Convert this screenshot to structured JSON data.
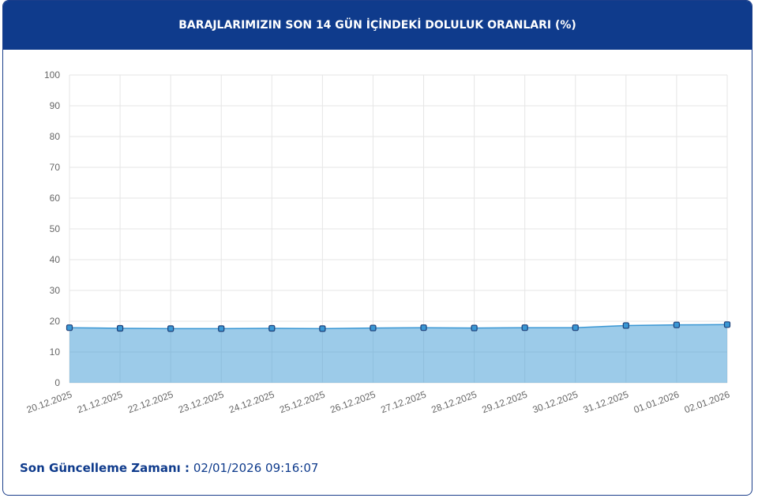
{
  "chart_data": {
    "type": "area",
    "title": "BARAJLARIMIZIN SON 14 GÜN İÇİNDEKİ DOLULUK ORANLARI (%)",
    "categories": [
      "20.12.2025",
      "21.12.2025",
      "22.12.2025",
      "23.12.2025",
      "24.12.2025",
      "25.12.2025",
      "26.12.2025",
      "27.12.2025",
      "28.12.2025",
      "29.12.2025",
      "30.12.2025",
      "31.12.2025",
      "01.01.2026",
      "02.01.2026"
    ],
    "series": [
      {
        "color": "#3a97d4",
        "values": [
          17.9,
          17.7,
          17.6,
          17.6,
          17.7,
          17.6,
          17.8,
          17.9,
          17.8,
          17.9,
          17.9,
          18.6,
          18.8,
          18.9
        ]
      }
    ],
    "ylim": [
      0,
      100
    ],
    "yticks": [
      0,
      10,
      20,
      30,
      40,
      50,
      60,
      70,
      80,
      90,
      100
    ],
    "grid": true
  },
  "footer": {
    "label": "Son Güncelleme Zamanı :",
    "value": "02/01/2026 09:16:07"
  }
}
